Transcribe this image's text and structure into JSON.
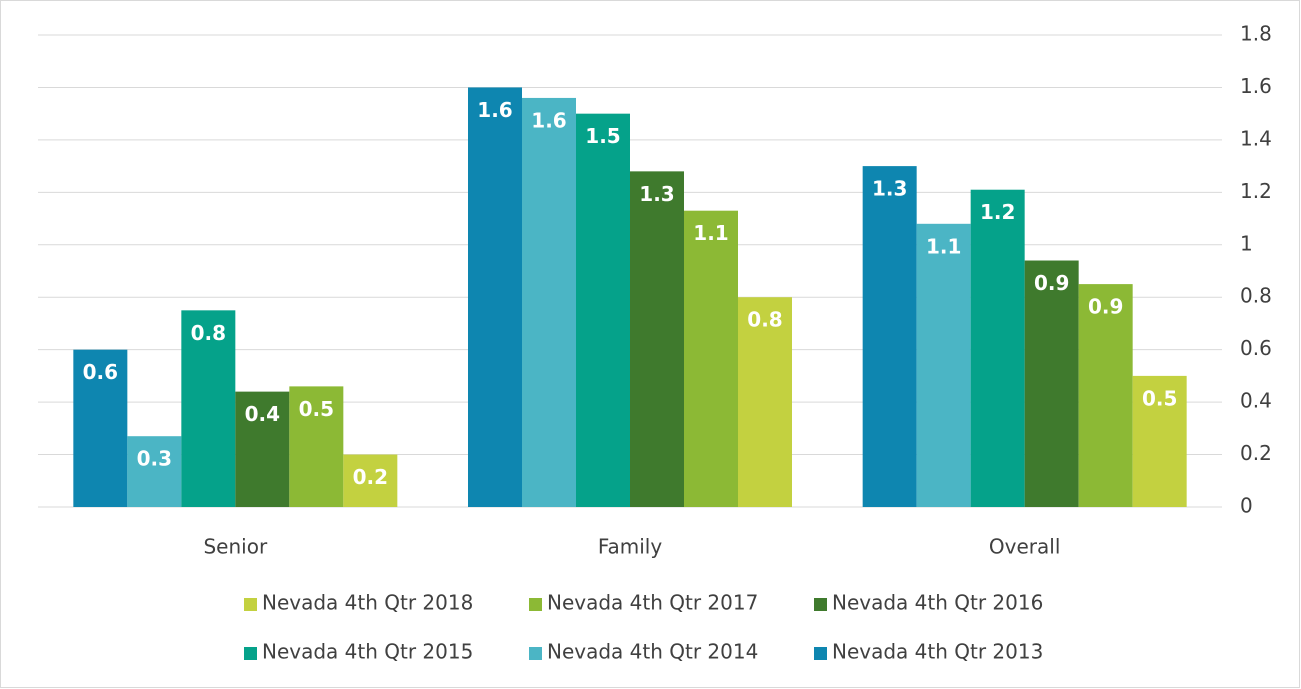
{
  "chart_data": {
    "type": "bar",
    "categories": [
      "Senior",
      "Family",
      "Overall"
    ],
    "series": [
      {
        "name": "Nevada 4th Qtr 2013",
        "color": "#0e86b0",
        "values": [
          0.6,
          1.6,
          1.3
        ],
        "value_labels": [
          "0.6",
          "1.6",
          "1.3"
        ]
      },
      {
        "name": "Nevada 4th Qtr 2014",
        "color": "#4bb5c5",
        "values": [
          0.27,
          1.56,
          1.08
        ],
        "value_labels": [
          "0.3",
          "1.6",
          "1.1"
        ]
      },
      {
        "name": "Nevada 4th Qtr 2015",
        "color": "#05a28a",
        "values": [
          0.75,
          1.5,
          1.21
        ],
        "value_labels": [
          "0.8",
          "1.5",
          "1.2"
        ]
      },
      {
        "name": "Nevada 4th Qtr 2016",
        "color": "#3f7a2d",
        "values": [
          0.44,
          1.28,
          0.94
        ],
        "value_labels": [
          "0.4",
          "1.3",
          "0.9"
        ]
      },
      {
        "name": "Nevada 4th Qtr 2017",
        "color": "#8cb935",
        "values": [
          0.46,
          1.13,
          0.85
        ],
        "value_labels": [
          "0.5",
          "1.1",
          "0.9"
        ]
      },
      {
        "name": "Nevada 4th Qtr 2018",
        "color": "#c3d140",
        "values": [
          0.2,
          0.8,
          0.5
        ],
        "value_labels": [
          "0.2",
          "0.8",
          "0.5"
        ]
      }
    ],
    "ylim": [
      0,
      1.8
    ],
    "yticks": [
      0,
      0.2,
      0.4,
      0.6,
      0.8,
      1,
      1.2,
      1.4,
      1.6,
      1.8
    ],
    "grid": true,
    "legend": "bottom"
  }
}
